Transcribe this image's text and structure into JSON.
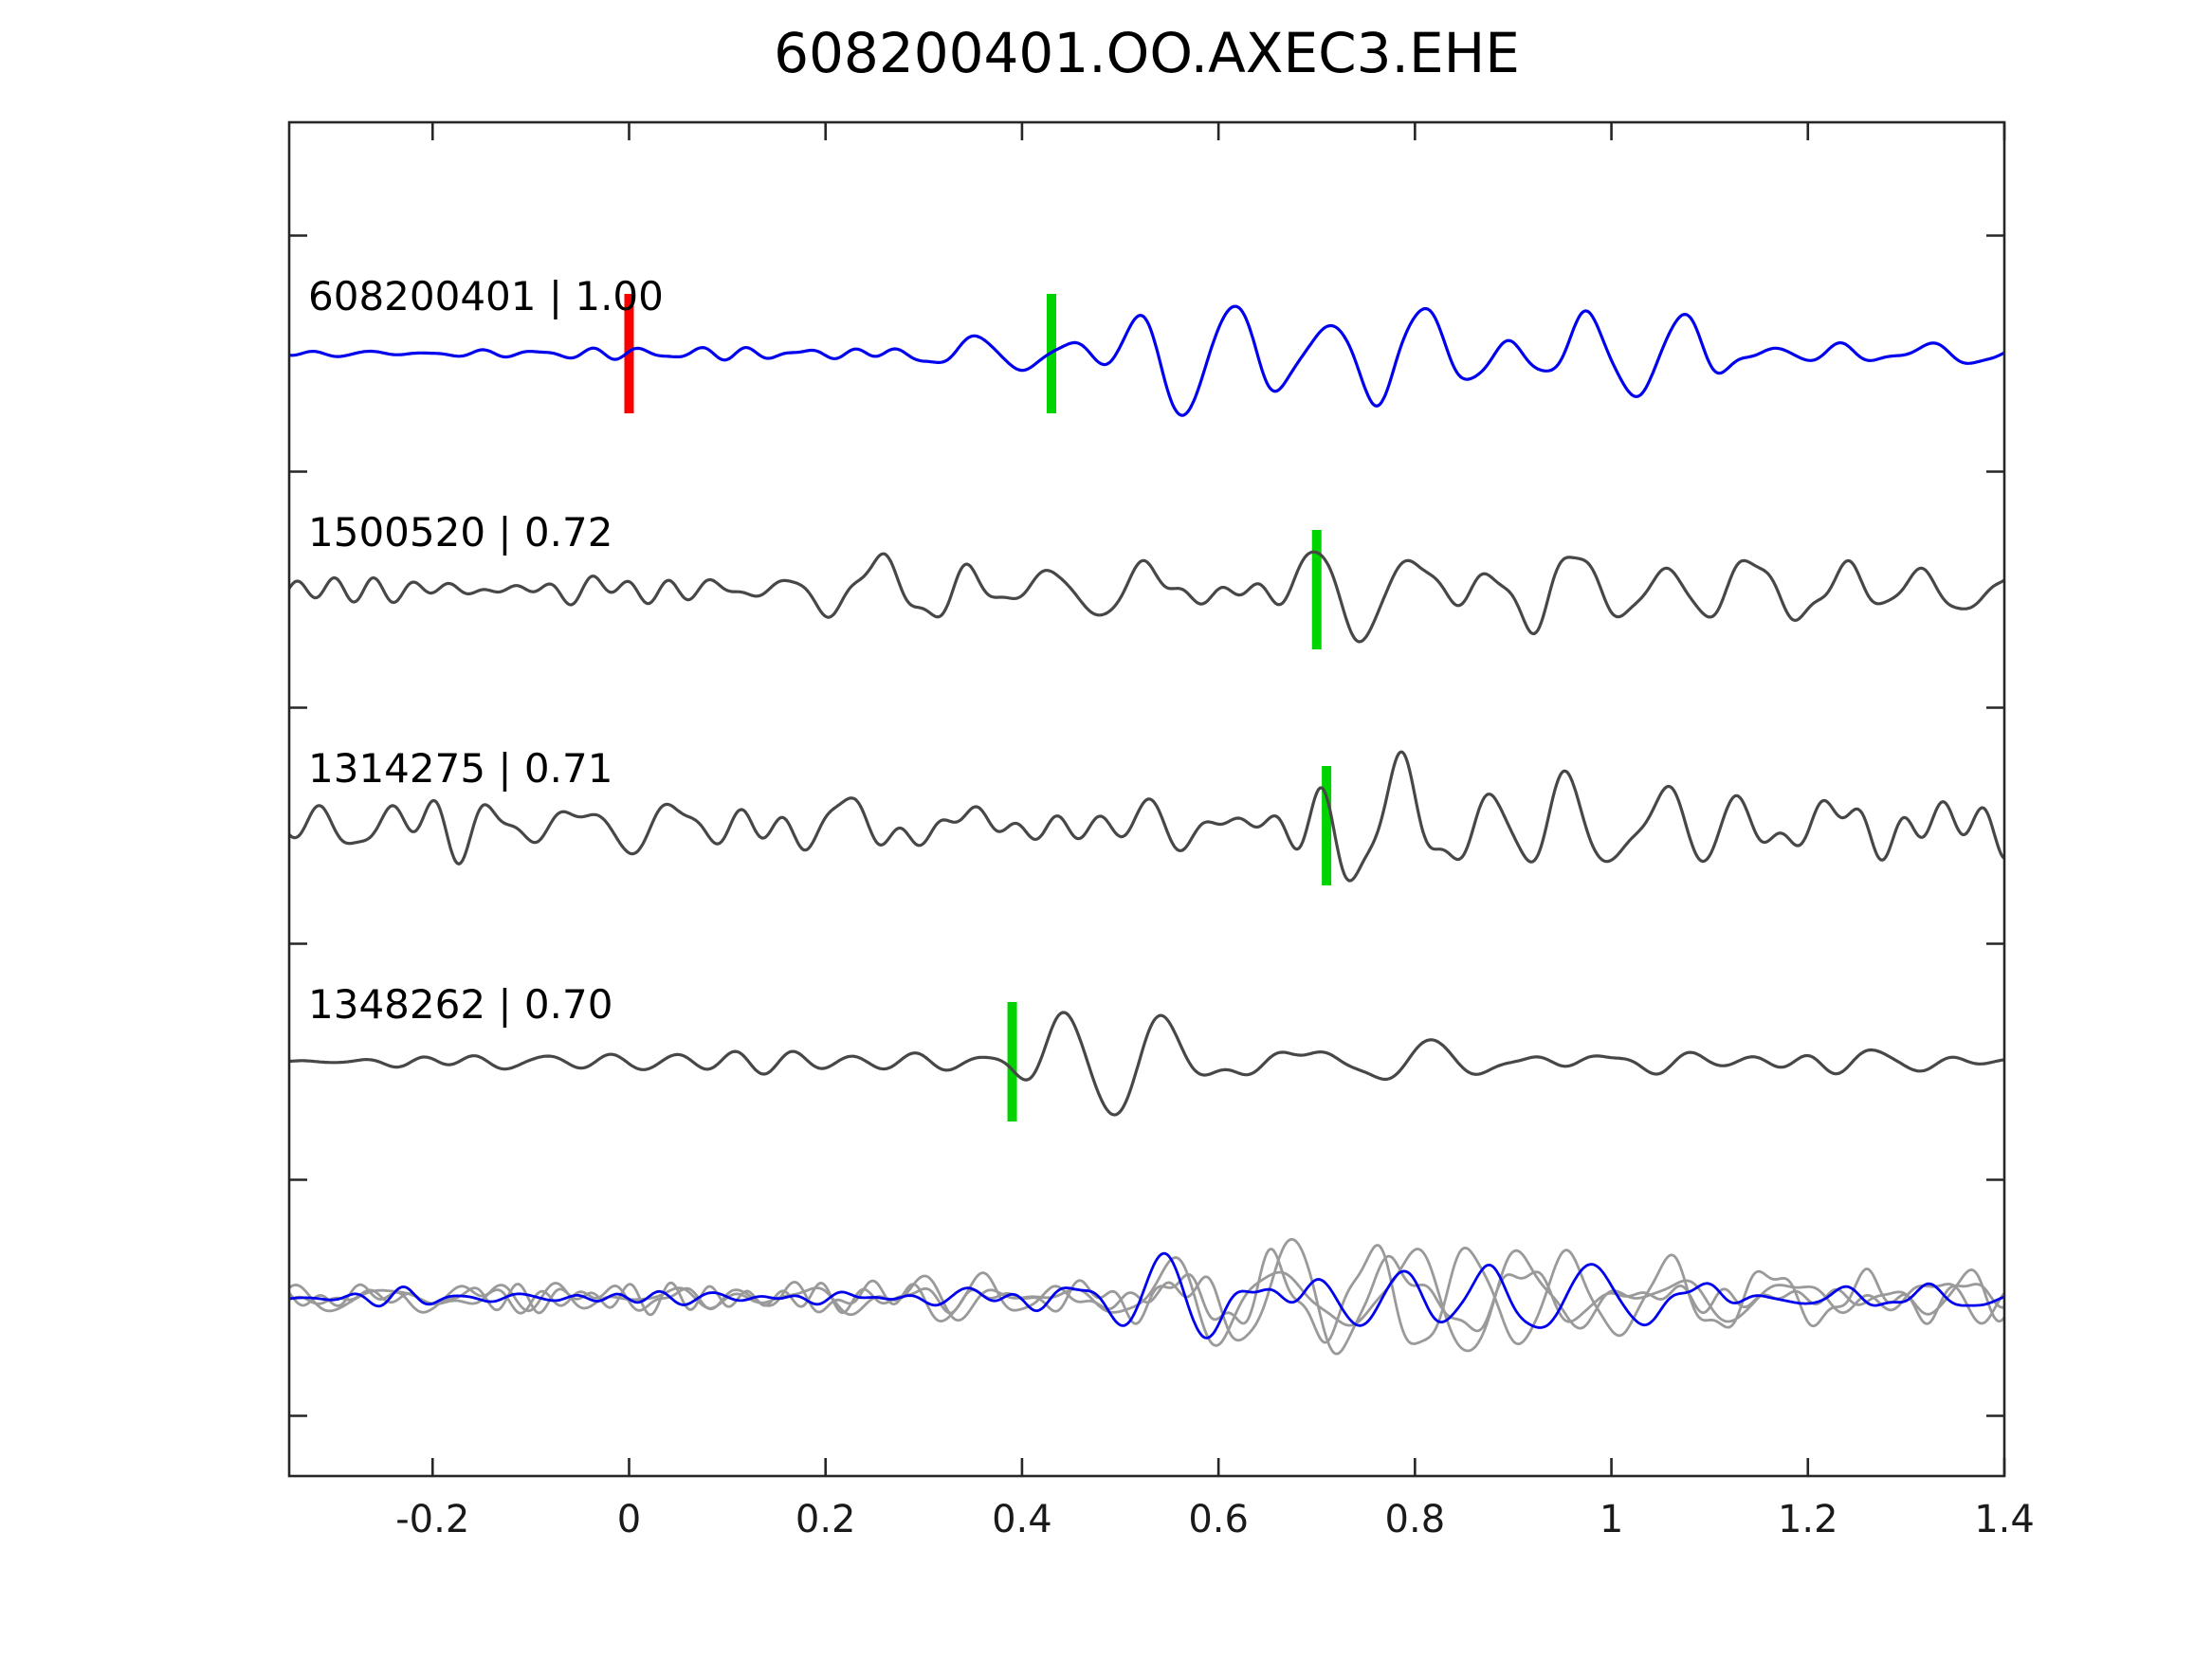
{
  "title": "608200401.OO.AXEC3.EHE",
  "colors": {
    "background": "#ffffff",
    "axis": "#262626",
    "text": "#000000",
    "reference_trace": "#0000ee",
    "template_trace": "#474747",
    "overlay_trace": "#9a9a9a",
    "pick_marker_green": "#00d400",
    "origin_marker_red": "#f80000"
  },
  "chart_data": {
    "type": "line",
    "title": "608200401.OO.AXEC3.EHE",
    "xlabel": "",
    "ylabel": "",
    "xlim": [
      -0.346,
      1.4
    ],
    "x_ticks": [
      -0.2,
      0,
      0.2,
      0.4,
      0.6,
      0.8,
      1,
      1.2,
      1.4
    ],
    "x_tick_labels": [
      "-0.2",
      "0",
      "0.2",
      "0.4",
      "0.6",
      "0.8",
      "1",
      "1.2",
      "1.4"
    ],
    "y_tick_labels": [],
    "grid": false,
    "legend": false,
    "rows": 5,
    "traces": [
      {
        "id": "608200401",
        "similarity": "1.00",
        "label": "608200401 | 1.00",
        "color_key": "reference_trace",
        "green_pick_x": 0.43,
        "red_pick_x": 0.0,
        "seed": 7,
        "noise_amp": 8,
        "noise_freq": [
          14,
          28
        ],
        "sig_freq": [
          6.5,
          13
        ],
        "envelope": [
          [
            -0.35,
            1
          ],
          [
            0.24,
            1
          ],
          [
            0.3,
            14
          ],
          [
            0.38,
            22
          ],
          [
            0.44,
            45
          ],
          [
            0.5,
            78
          ],
          [
            0.55,
            120
          ],
          [
            0.63,
            70
          ],
          [
            0.7,
            46
          ],
          [
            0.78,
            75
          ],
          [
            0.88,
            65
          ],
          [
            0.98,
            55
          ],
          [
            1.08,
            45
          ],
          [
            1.18,
            22
          ],
          [
            1.3,
            12
          ],
          [
            1.4,
            10
          ]
        ]
      },
      {
        "id": "1500520",
        "similarity": "0.72",
        "label": "1500520 | 0.72",
        "color_key": "template_trace",
        "green_pick_x": 0.7,
        "seed": 19,
        "noise_amp": 13,
        "noise_freq": [
          14,
          28
        ],
        "sig_freq": [
          6.5,
          13
        ],
        "envelope": [
          [
            -0.35,
            4
          ],
          [
            0.16,
            5
          ],
          [
            0.24,
            26
          ],
          [
            0.34,
            30
          ],
          [
            0.42,
            24
          ],
          [
            0.5,
            28
          ],
          [
            0.58,
            24
          ],
          [
            0.66,
            50
          ],
          [
            0.72,
            85
          ],
          [
            0.8,
            95
          ],
          [
            0.9,
            85
          ],
          [
            1.0,
            70
          ],
          [
            1.1,
            55
          ],
          [
            1.2,
            48
          ],
          [
            1.3,
            44
          ],
          [
            1.4,
            40
          ]
        ]
      },
      {
        "id": "1314275",
        "similarity": "0.71",
        "label": "1314275 | 0.71",
        "color_key": "template_trace",
        "green_pick_x": 0.71,
        "seed": 31,
        "noise_amp": 24,
        "noise_freq": [
          13,
          26
        ],
        "sig_freq": [
          6.5,
          13
        ],
        "envelope": [
          [
            -0.35,
            16
          ],
          [
            0.12,
            20
          ],
          [
            0.2,
            36
          ],
          [
            0.3,
            38
          ],
          [
            0.4,
            30
          ],
          [
            0.5,
            24
          ],
          [
            0.6,
            18
          ],
          [
            0.68,
            24
          ],
          [
            0.76,
            88
          ],
          [
            0.86,
            70
          ],
          [
            0.96,
            60
          ],
          [
            1.06,
            52
          ],
          [
            1.16,
            55
          ],
          [
            1.26,
            45
          ],
          [
            1.4,
            38
          ]
        ]
      },
      {
        "id": "1348262",
        "similarity": "0.70",
        "label": "1348262 | 0.70",
        "color_key": "template_trace",
        "green_pick_x": 0.39,
        "seed": 43,
        "noise_amp": 10,
        "noise_freq": [
          14,
          28
        ],
        "sig_freq": [
          6.5,
          13
        ],
        "envelope": [
          [
            -0.35,
            4
          ],
          [
            0.28,
            4
          ],
          [
            0.36,
            12
          ],
          [
            0.44,
            80
          ],
          [
            0.52,
            58
          ],
          [
            0.6,
            38
          ],
          [
            0.68,
            32
          ],
          [
            0.78,
            32
          ],
          [
            0.88,
            24
          ],
          [
            1.0,
            20
          ],
          [
            1.12,
            16
          ],
          [
            1.26,
            13
          ],
          [
            1.4,
            11
          ]
        ]
      }
    ],
    "overlay": {
      "row": 5,
      "members": [
        {
          "color_key": "overlay_trace",
          "seed": 61,
          "noise_amp": 14,
          "noise_freq": [
            13,
            27
          ],
          "sig_freq": [
            6.5,
            13
          ],
          "envelope": [
            [
              -0.35,
              10
            ],
            [
              0.2,
              12
            ],
            [
              0.28,
              22
            ],
            [
              0.4,
              28
            ],
            [
              0.5,
              45
            ],
            [
              0.6,
              52
            ],
            [
              0.7,
              58
            ],
            [
              0.8,
              62
            ],
            [
              0.9,
              52
            ],
            [
              1.0,
              46
            ],
            [
              1.1,
              42
            ],
            [
              1.25,
              32
            ],
            [
              1.4,
              30
            ]
          ]
        },
        {
          "color_key": "overlay_trace",
          "seed": 67,
          "noise_amp": 16,
          "noise_freq": [
            13,
            27
          ],
          "sig_freq": [
            6.5,
            13
          ],
          "envelope": [
            [
              -0.35,
              12
            ],
            [
              0.22,
              14
            ],
            [
              0.3,
              26
            ],
            [
              0.42,
              32
            ],
            [
              0.52,
              50
            ],
            [
              0.62,
              58
            ],
            [
              0.72,
              52
            ],
            [
              0.82,
              66
            ],
            [
              0.92,
              56
            ],
            [
              1.02,
              44
            ],
            [
              1.12,
              38
            ],
            [
              1.26,
              30
            ],
            [
              1.4,
              26
            ]
          ]
        },
        {
          "color_key": "overlay_trace",
          "seed": 73,
          "noise_amp": 12,
          "noise_freq": [
            13,
            27
          ],
          "sig_freq": [
            6.5,
            13
          ],
          "envelope": [
            [
              -0.35,
              9
            ],
            [
              0.18,
              10
            ],
            [
              0.26,
              20
            ],
            [
              0.38,
              26
            ],
            [
              0.48,
              40
            ],
            [
              0.58,
              60
            ],
            [
              0.68,
              48
            ],
            [
              0.78,
              56
            ],
            [
              0.88,
              48
            ],
            [
              0.98,
              42
            ],
            [
              1.1,
              36
            ],
            [
              1.25,
              28
            ],
            [
              1.4,
              24
            ]
          ]
        },
        {
          "color_key": "reference_trace",
          "seed": 79,
          "noise_amp": 7,
          "noise_freq": [
            14,
            28
          ],
          "sig_freq": [
            6.5,
            13
          ],
          "envelope": [
            [
              -0.35,
              3
            ],
            [
              0.28,
              4
            ],
            [
              0.38,
              12
            ],
            [
              0.46,
              32
            ],
            [
              0.52,
              58
            ],
            [
              0.58,
              72
            ],
            [
              0.66,
              48
            ],
            [
              0.74,
              58
            ],
            [
              0.82,
              46
            ],
            [
              0.92,
              40
            ],
            [
              1.02,
              34
            ],
            [
              1.12,
              28
            ],
            [
              1.22,
              20
            ],
            [
              1.32,
              15
            ],
            [
              1.4,
              12
            ]
          ]
        }
      ]
    }
  }
}
